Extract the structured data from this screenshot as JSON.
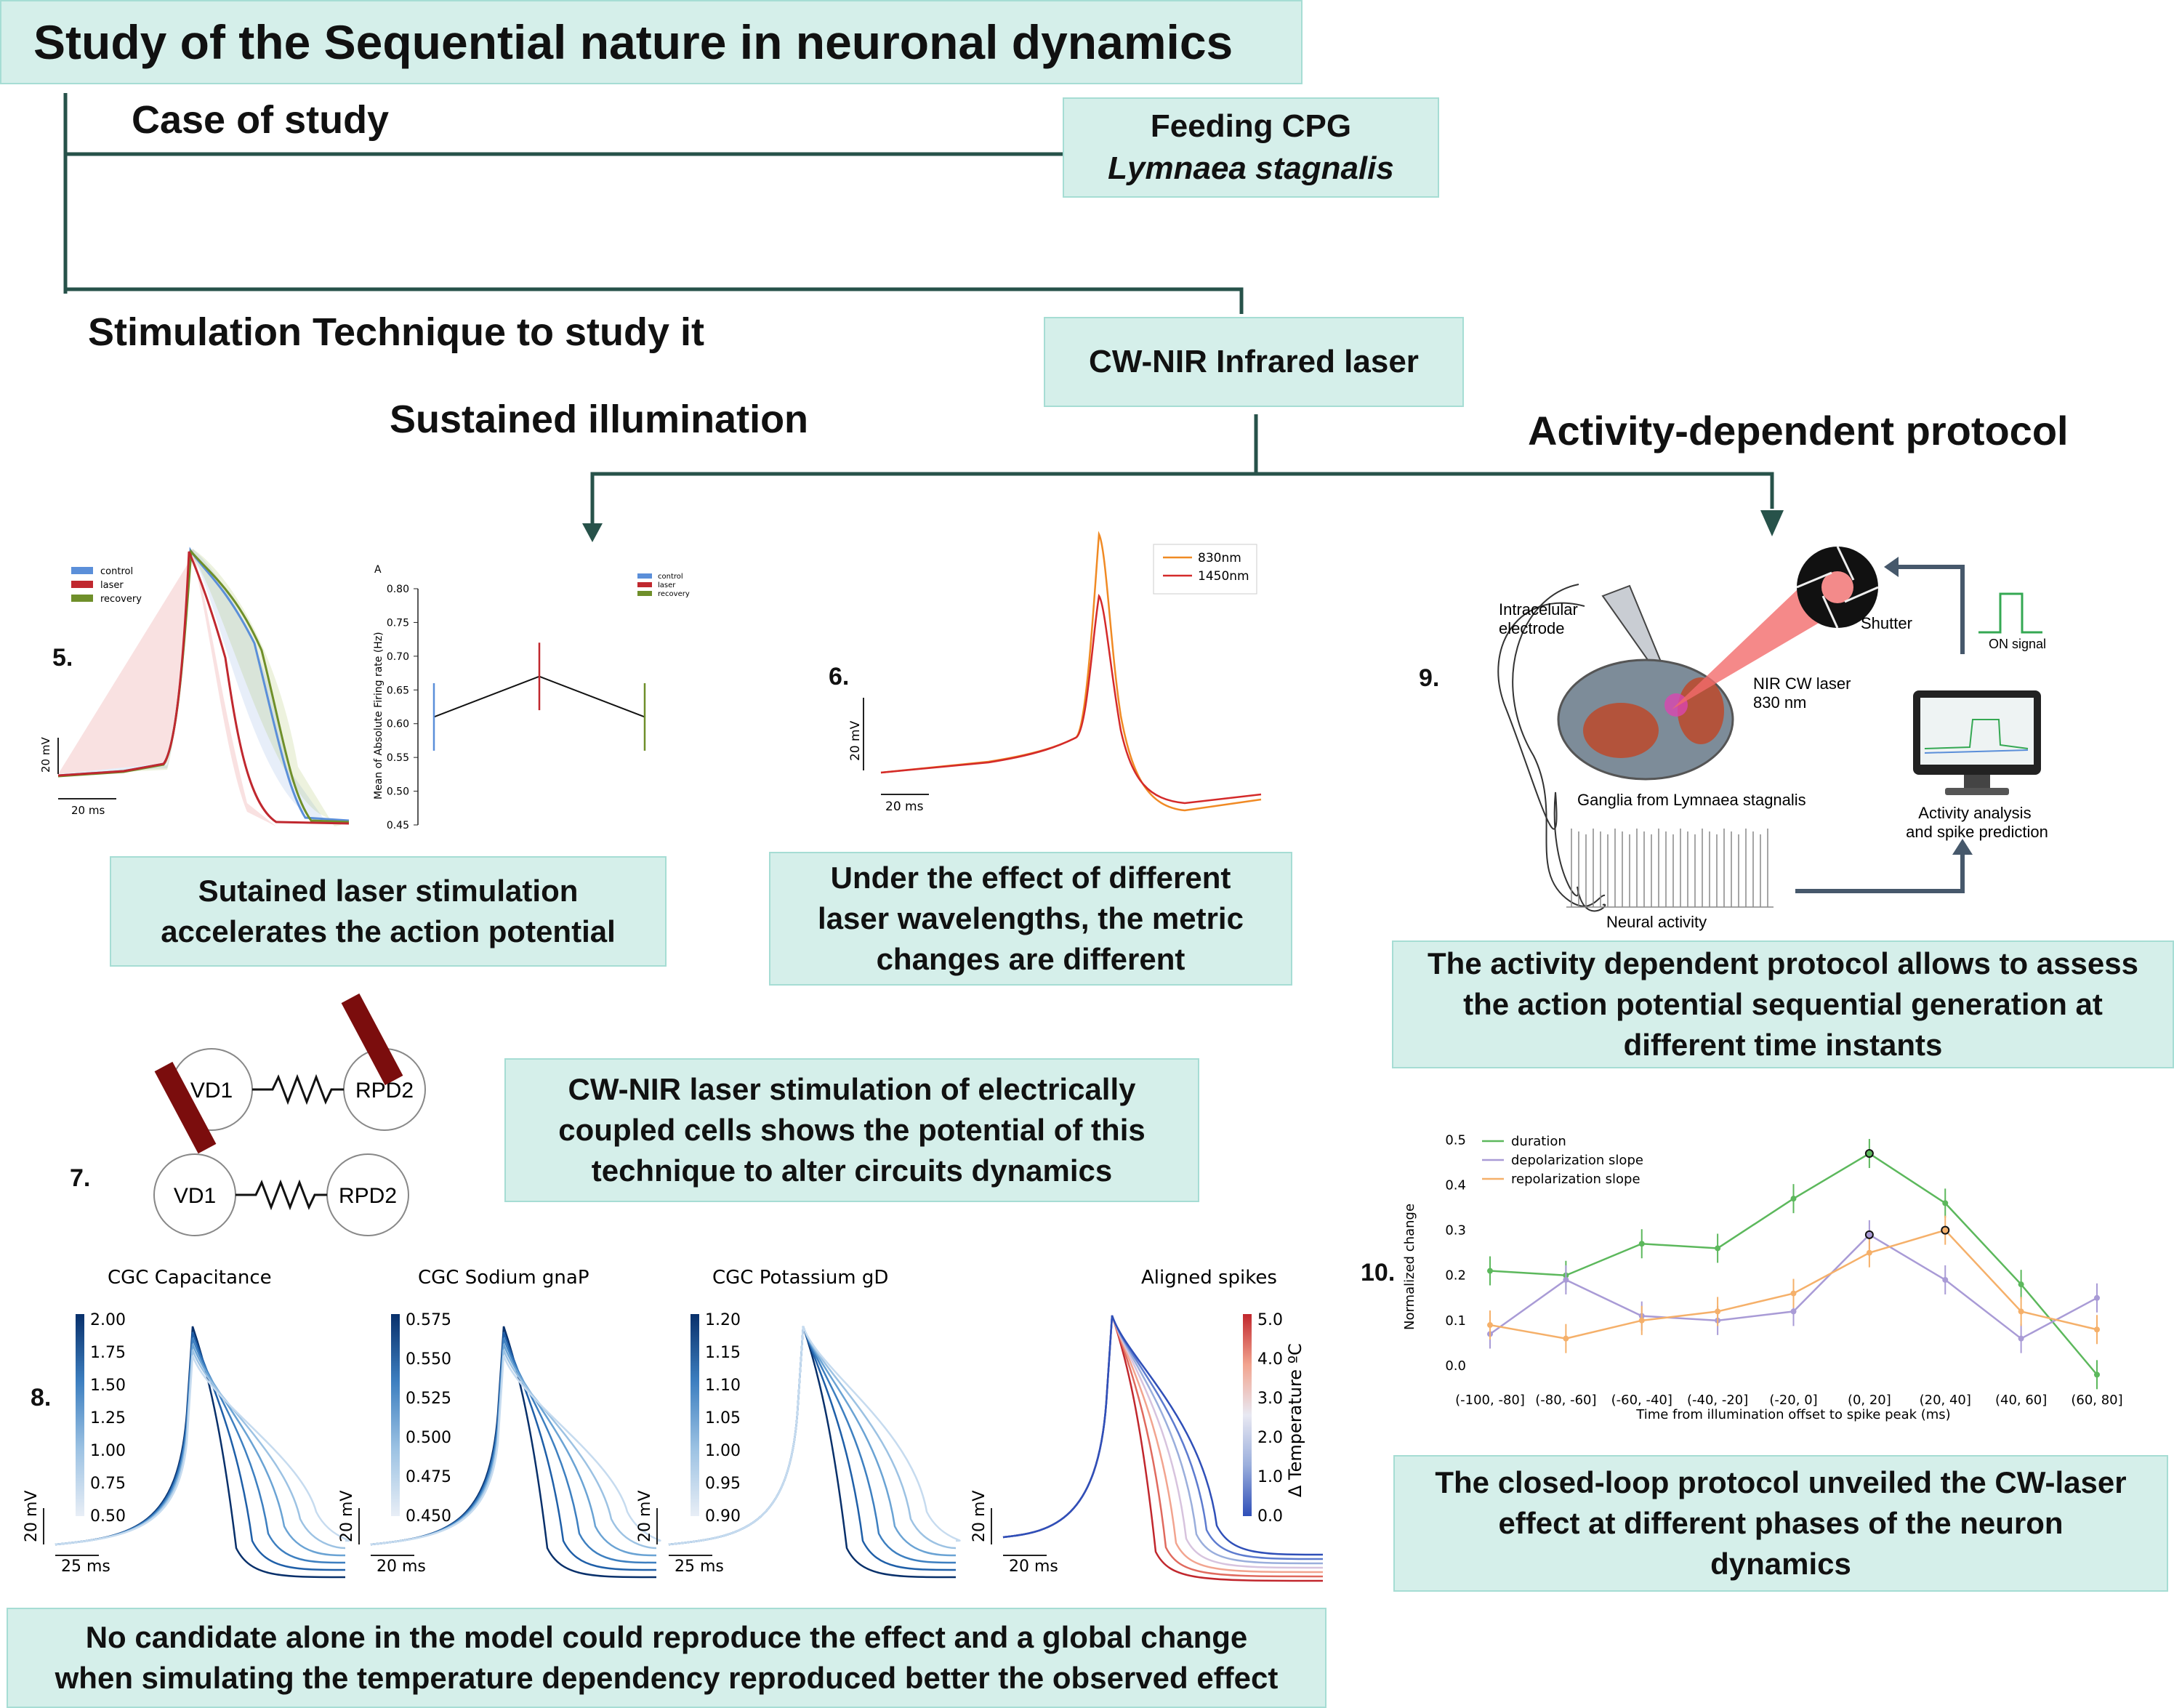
{
  "title": "Study of the Sequential nature in neuronal dynamics",
  "flow": {
    "case_heading": "Case of study",
    "case_box_line1": "Feeding CPG",
    "case_box_line2": "Lymnaea stagnalis",
    "technique_heading": "Stimulation Technique to study it",
    "technique_box": "CW-NIR Infrared laser",
    "branch_left": "Sustained illumination",
    "branch_right": "Activity-dependent protocol"
  },
  "panels": {
    "p5": "5.",
    "p6": "6.",
    "p7": "7.",
    "p8": "8.",
    "p9": "9.",
    "p10": "10."
  },
  "captions": {
    "c5": "Sutained laser stimulation\naccelerates the action potential",
    "c6": "Under the effect of different\nlaser wavelengths, the metric\nchanges are different",
    "c7": "CW-NIR laser stimulation of electrically\ncoupled cells shows the potential of this\ntechnique to alter circuits dynamics",
    "c8": "No candidate alone in the model could reproduce the effect and a global change\nwhen simulating the temperature dependency reproduced better the observed effect",
    "c9": "The activity dependent protocol allows to assess\nthe action potential sequential generation at\ndifferent time instants",
    "c10": "The closed-loop protocol unveiled the CW-laser\neffect at different phases of the neuron\ndynamics"
  },
  "fig5": {
    "legend": [
      "control",
      "laser",
      "recovery"
    ],
    "legend_colors": [
      "#5b8fd9",
      "#c0282f",
      "#6f8f2a"
    ],
    "scale_v": "20 mV",
    "scale_t": "20 ms",
    "inset_label": "A",
    "inset_ylabel": "Mean of Absolute Firing rate (Hz)",
    "inset_legend": [
      "control",
      "laser",
      "recovery"
    ]
  },
  "fig6": {
    "legend": [
      "830nm",
      "1450nm"
    ],
    "colors": [
      "#f08a24",
      "#d42a2a"
    ],
    "scale_v": "20 mV",
    "scale_t": "20 ms"
  },
  "fig7": {
    "top": [
      "VD1",
      "RPD2"
    ],
    "bottom": [
      "VD1",
      "RPD2"
    ]
  },
  "fig8": {
    "panels": [
      {
        "title": "CGC Capacitance",
        "ticks": [
          "2.00",
          "1.75",
          "1.50",
          "1.25",
          "1.00",
          "0.75",
          "0.50"
        ],
        "scale_v": "20 mV",
        "scale_t": "25 ms"
      },
      {
        "title": "CGC Sodium gnaP",
        "ticks": [
          "0.575",
          "0.550",
          "0.525",
          "0.500",
          "0.475",
          "0.450"
        ],
        "scale_v": "20 mV",
        "scale_t": "20 ms"
      },
      {
        "title": "CGC Potassium gD",
        "ticks": [
          "1.20",
          "1.15",
          "1.10",
          "1.05",
          "1.00",
          "0.95",
          "0.90"
        ],
        "scale_v": "20 mV",
        "scale_t": "25 ms"
      },
      {
        "title": "Aligned spikes",
        "ticks": [
          "5.0",
          "4.0",
          "3.0",
          "2.0",
          "1.0",
          "0.0"
        ],
        "colorbar_label": "Δ Temperature ºC",
        "scale_v": "20 mV",
        "scale_t": "20 ms"
      }
    ]
  },
  "fig9": {
    "electrode": "Intracelular\nelectrode",
    "shutter": "Shutter",
    "on_signal": "ON signal",
    "laser": "NIR CW laser\n830 nm",
    "ganglia": "Ganglia from Lymnaea stagnalis",
    "activity": "Activity analysis\nand spike prediction",
    "neural": "Neural activity"
  },
  "chart_data": [
    {
      "type": "line",
      "panel": "5-inset",
      "title": "A",
      "ylabel": "Mean of Absolute Firing rate (Hz)",
      "categories": [
        "control",
        "laser",
        "recovery"
      ],
      "values": [
        0.61,
        0.67,
        0.61
      ],
      "error_bars": [
        [
          0.56,
          0.66
        ],
        [
          0.62,
          0.72
        ],
        [
          0.56,
          0.66
        ]
      ],
      "ylim": [
        0.45,
        0.8
      ],
      "yticks": [
        "0.45",
        "0.50",
        "0.55",
        "0.60",
        "0.65",
        "0.70",
        "0.75",
        "0.80"
      ]
    },
    {
      "type": "line",
      "panel": "10",
      "xlabel": "Time from illumination offset to spike peak (ms)",
      "ylabel": "Normalized change",
      "categories": [
        "(-100, -80]",
        "(-80, -60]",
        "(-60, -40]",
        "(-40, -20]",
        "(-20, 0]",
        "(0, 20]",
        "(20, 40]",
        "(40, 60]",
        "(60, 80]"
      ],
      "ylim": [
        -0.05,
        0.52
      ],
      "yticks": [
        "0.0",
        "0.1",
        "0.2",
        "0.3",
        "0.4",
        "0.5"
      ],
      "series": [
        {
          "name": "duration",
          "color": "#5cb85c",
          "values": [
            0.21,
            0.2,
            0.27,
            0.26,
            0.37,
            0.47,
            0.36,
            0.18,
            -0.02
          ]
        },
        {
          "name": "depolarization slope",
          "color": "#a99bd6",
          "values": [
            0.07,
            0.19,
            0.11,
            0.1,
            0.12,
            0.29,
            0.19,
            0.06,
            0.15
          ]
        },
        {
          "name": "repolarization slope",
          "color": "#f5b06a",
          "values": [
            0.09,
            0.06,
            0.1,
            0.12,
            0.16,
            0.25,
            0.3,
            0.12,
            0.08
          ]
        }
      ]
    }
  ]
}
